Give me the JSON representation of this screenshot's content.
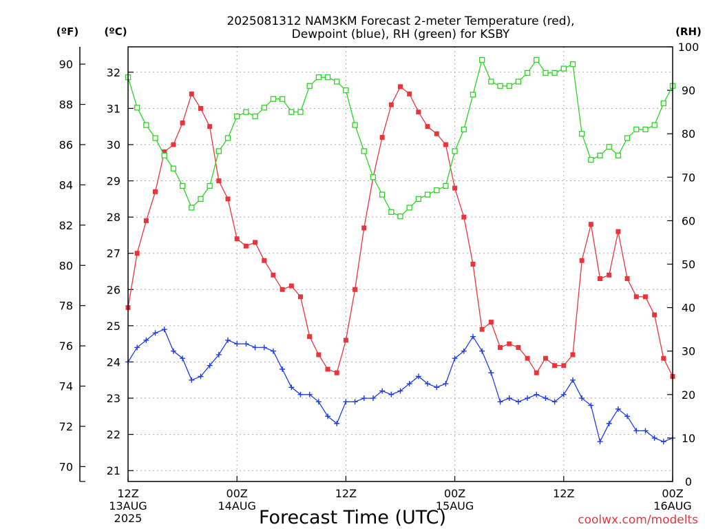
{
  "chart_data": {
    "type": "line",
    "title": [
      "2025081312 NAM3KM Forecast 2-meter Temperature (red),",
      "Dewpoint (blue), RH (green) for KSBY"
    ],
    "xlabel": "Forecast Time (UTC)",
    "watermark": "coolwx.com/modelts",
    "axis_labels": {
      "fahrenheit": "(ºF)",
      "celsius": "(ºC)",
      "rh": "(RH)"
    },
    "x_hours_range": [
      0,
      60
    ],
    "x_ticks": [
      {
        "hour": 0,
        "lines": [
          "12Z",
          "13AUG",
          "2025"
        ]
      },
      {
        "hour": 12,
        "lines": [
          "00Z",
          "14AUG"
        ]
      },
      {
        "hour": 24,
        "lines": [
          "12Z"
        ]
      },
      {
        "hour": 36,
        "lines": [
          "00Z",
          "15AUG"
        ]
      },
      {
        "hour": 48,
        "lines": [
          "12Z"
        ]
      },
      {
        "hour": 60,
        "lines": [
          "00Z",
          "16AUG"
        ]
      }
    ],
    "celsius_ticks": [
      21,
      22,
      23,
      24,
      25,
      26,
      27,
      28,
      29,
      30,
      31,
      32
    ],
    "fahrenheit_ticks": [
      70,
      72,
      74,
      76,
      78,
      80,
      82,
      84,
      86,
      88,
      90
    ],
    "rh_ticks": [
      0,
      10,
      20,
      30,
      40,
      50,
      60,
      70,
      80,
      90,
      100
    ],
    "ylim_celsius": [
      20.7,
      32.7
    ],
    "ylim_rh": [
      0,
      100
    ],
    "series": [
      {
        "name": "Temperature",
        "axis": "celsius",
        "color": "#e8353b",
        "marker": "filled-square",
        "values": [
          25.5,
          27.0,
          27.9,
          28.7,
          29.8,
          30.0,
          30.6,
          31.4,
          31.0,
          30.5,
          29.0,
          28.5,
          27.4,
          27.2,
          27.3,
          26.8,
          26.4,
          26.0,
          26.1,
          25.8,
          24.7,
          24.2,
          23.8,
          23.7,
          24.6,
          26.0,
          27.7,
          29.1,
          30.2,
          31.1,
          31.6,
          31.4,
          30.9,
          30.5,
          30.3,
          30.0,
          28.8,
          28.0,
          26.7,
          24.9,
          25.1,
          24.4,
          24.5,
          24.4,
          24.1,
          23.7,
          24.1,
          23.9,
          23.9,
          24.2,
          26.8,
          27.8,
          26.3,
          26.4,
          27.6,
          26.3,
          25.8,
          25.8,
          25.3,
          24.1,
          23.6
        ]
      },
      {
        "name": "Dewpoint",
        "axis": "celsius",
        "color": "#1e3ce6",
        "marker": "plus",
        "values": [
          24.0,
          24.4,
          24.6,
          24.8,
          24.9,
          24.3,
          24.1,
          23.5,
          23.6,
          23.9,
          24.2,
          24.6,
          24.5,
          24.5,
          24.4,
          24.4,
          24.3,
          23.8,
          23.3,
          23.1,
          23.1,
          22.9,
          22.5,
          22.3,
          22.9,
          22.9,
          23.0,
          23.0,
          23.2,
          23.1,
          23.2,
          23.4,
          23.6,
          23.4,
          23.3,
          23.4,
          24.1,
          24.3,
          24.7,
          24.3,
          23.7,
          22.9,
          23.0,
          22.9,
          23.0,
          23.1,
          23.0,
          22.9,
          23.1,
          23.5,
          23.0,
          22.8,
          21.8,
          22.3,
          22.7,
          22.5,
          22.1,
          22.1,
          21.9,
          21.8,
          21.9
        ]
      },
      {
        "name": "RH",
        "axis": "rh",
        "color": "#2cd424",
        "marker": "open-square",
        "values": [
          93,
          86,
          82,
          79,
          75,
          72,
          68,
          63,
          65,
          68,
          76,
          79,
          84,
          85,
          84,
          86,
          88,
          88,
          85,
          85,
          91,
          93,
          93,
          92,
          90,
          82,
          76,
          70,
          66,
          62,
          61,
          63,
          65,
          66,
          67,
          68,
          76,
          81,
          89,
          97,
          92,
          91,
          91,
          92,
          94,
          97,
          94,
          94,
          95,
          96,
          80,
          74,
          75,
          77,
          75,
          79,
          81,
          81,
          82,
          87,
          91
        ]
      }
    ]
  }
}
